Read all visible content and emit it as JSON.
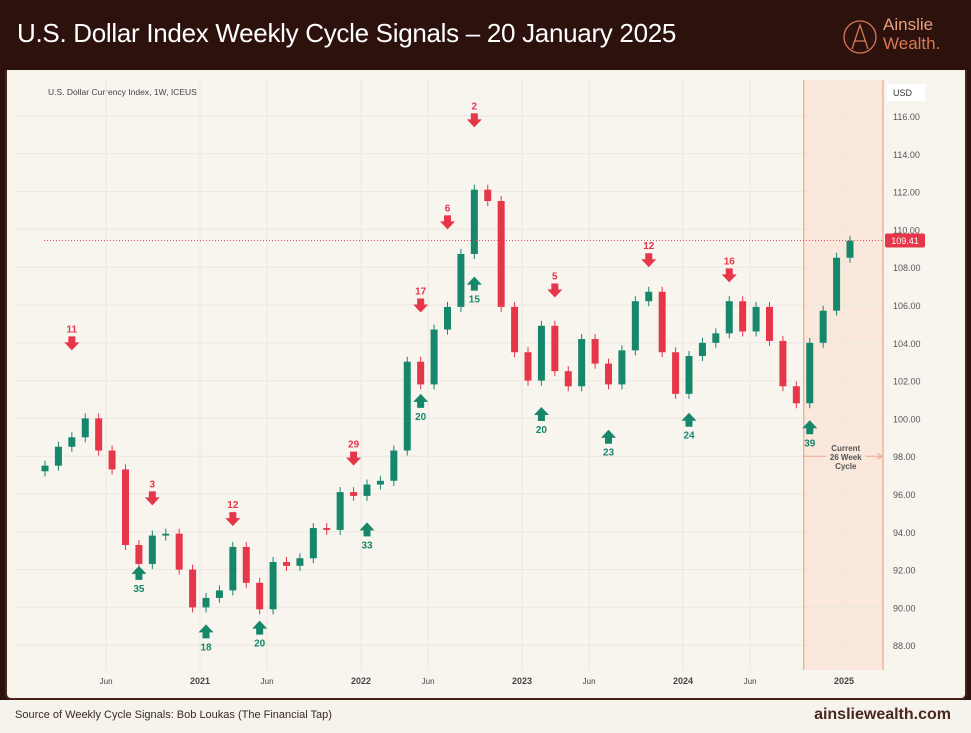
{
  "header": {
    "title": "U.S. Dollar Index Weekly Cycle Signals – 20 January 2025",
    "logo_line1": "Ainslie",
    "logo_line2": "Wealth."
  },
  "footer": {
    "source": "Source of Weekly Cycle Signals: Bob Loukas (The Financial Tap)",
    "site": "ainsliewealth.com"
  },
  "colors": {
    "up": "#16876b",
    "down": "#e5364a",
    "shade": "#f9dccb",
    "cycle_line": "#eea58a",
    "price_tag": "#e5364a"
  },
  "chart_data": {
    "type": "candlestick",
    "title": "U.S. Dollar Currency Index, 1W, ICEUS",
    "currency_label": "USD",
    "ylim": [
      87,
      117
    ],
    "yticks": [
      "116.00",
      "114.00",
      "112.00",
      "110.00",
      "108.00",
      "106.00",
      "104.00",
      "102.00",
      "100.00",
      "98.00",
      "96.00",
      "94.00",
      "92.00",
      "90.00",
      "88.00"
    ],
    "xticks": [
      {
        "label": "Jun",
        "date": "2020-06",
        "bold": false
      },
      {
        "label": "2021",
        "date": "2021-01",
        "bold": true
      },
      {
        "label": "Jun",
        "date": "2021-06",
        "bold": false
      },
      {
        "label": "2022",
        "date": "2022-01",
        "bold": true
      },
      {
        "label": "Jun",
        "date": "2022-06",
        "bold": false
      },
      {
        "label": "2023",
        "date": "2023-01",
        "bold": true
      },
      {
        "label": "Jun",
        "date": "2023-06",
        "bold": false
      },
      {
        "label": "2024",
        "date": "2024-01",
        "bold": true
      },
      {
        "label": "Jun",
        "date": "2024-06",
        "bold": false
      },
      {
        "label": "2025",
        "date": "2025-01",
        "bold": true
      }
    ],
    "last_price": "109.41",
    "closes": [
      [
        "2020-01",
        97.5
      ],
      [
        "2020-02",
        98.5
      ],
      [
        "2020-03",
        99.0
      ],
      [
        "2020-04",
        100.0
      ],
      [
        "2020-05",
        98.3
      ],
      [
        "2020-06",
        97.3
      ],
      [
        "2020-07",
        93.3
      ],
      [
        "2020-08",
        92.3
      ],
      [
        "2020-09",
        93.8
      ],
      [
        "2020-10",
        93.9
      ],
      [
        "2020-11",
        92.0
      ],
      [
        "2020-12",
        90.0
      ],
      [
        "2021-01",
        90.5
      ],
      [
        "2021-02",
        90.9
      ],
      [
        "2021-03",
        93.2
      ],
      [
        "2021-04",
        91.3
      ],
      [
        "2021-05",
        89.9
      ],
      [
        "2021-06",
        92.4
      ],
      [
        "2021-07",
        92.2
      ],
      [
        "2021-08",
        92.6
      ],
      [
        "2021-09",
        94.2
      ],
      [
        "2021-10",
        94.1
      ],
      [
        "2021-11",
        96.1
      ],
      [
        "2021-12",
        95.9
      ],
      [
        "2022-01",
        96.5
      ],
      [
        "2022-02",
        96.7
      ],
      [
        "2022-03",
        98.3
      ],
      [
        "2022-04",
        103.0
      ],
      [
        "2022-05",
        101.8
      ],
      [
        "2022-06",
        104.7
      ],
      [
        "2022-07",
        105.9
      ],
      [
        "2022-08",
        108.7
      ],
      [
        "2022-09",
        112.1
      ],
      [
        "2022-10",
        111.5
      ],
      [
        "2022-11",
        105.9
      ],
      [
        "2022-12",
        103.5
      ],
      [
        "2023-01",
        102.0
      ],
      [
        "2023-02",
        104.9
      ],
      [
        "2023-03",
        102.5
      ],
      [
        "2023-04",
        101.7
      ],
      [
        "2023-05",
        104.2
      ],
      [
        "2023-06",
        102.9
      ],
      [
        "2023-07",
        101.8
      ],
      [
        "2023-08",
        103.6
      ],
      [
        "2023-09",
        106.2
      ],
      [
        "2023-10",
        106.7
      ],
      [
        "2023-11",
        103.5
      ],
      [
        "2023-12",
        101.3
      ],
      [
        "2024-01",
        103.3
      ],
      [
        "2024-02",
        104.0
      ],
      [
        "2024-03",
        104.5
      ],
      [
        "2024-04",
        106.2
      ],
      [
        "2024-05",
        104.6
      ],
      [
        "2024-06",
        105.9
      ],
      [
        "2024-07",
        104.1
      ],
      [
        "2024-08",
        101.7
      ],
      [
        "2024-09",
        100.8
      ],
      [
        "2024-10",
        104.0
      ],
      [
        "2024-11",
        105.7
      ],
      [
        "2024-12",
        108.5
      ],
      [
        "2025-01",
        109.4
      ]
    ],
    "signals": [
      {
        "type": "top",
        "label": "11",
        "date": "2020-03",
        "price": 103.6
      },
      {
        "type": "top",
        "label": "3",
        "date": "2020-09",
        "price": 95.4
      },
      {
        "type": "top",
        "label": "12",
        "date": "2021-03",
        "price": 94.3
      },
      {
        "type": "top",
        "label": "29",
        "date": "2021-12",
        "price": 97.5
      },
      {
        "type": "top",
        "label": "17",
        "date": "2022-05",
        "price": 105.6
      },
      {
        "type": "top",
        "label": "6",
        "date": "2022-07",
        "price": 110.0
      },
      {
        "type": "top",
        "label": "2",
        "date": "2022-09",
        "price": 115.4
      },
      {
        "type": "top",
        "label": "5",
        "date": "2023-03",
        "price": 106.4
      },
      {
        "type": "top",
        "label": "12",
        "date": "2023-10",
        "price": 108.0
      },
      {
        "type": "top",
        "label": "16",
        "date": "2024-04",
        "price": 107.2
      },
      {
        "type": "bottom",
        "label": "35",
        "date": "2020-08",
        "price": 92.2
      },
      {
        "type": "bottom",
        "label": "18",
        "date": "2021-01",
        "price": 89.1
      },
      {
        "type": "bottom",
        "label": "20",
        "date": "2021-05",
        "price": 89.3
      },
      {
        "type": "bottom",
        "label": "33",
        "date": "2022-01",
        "price": 94.5
      },
      {
        "type": "bottom",
        "label": "20",
        "date": "2022-05",
        "price": 101.3
      },
      {
        "type": "bottom",
        "label": "15",
        "date": "2022-09",
        "price": 107.5
      },
      {
        "type": "bottom",
        "label": "20",
        "date": "2023-02",
        "price": 100.6
      },
      {
        "type": "bottom",
        "label": "23",
        "date": "2023-07",
        "price": 99.4
      },
      {
        "type": "bottom",
        "label": "24",
        "date": "2024-01",
        "price": 100.3
      },
      {
        "type": "bottom",
        "label": "39",
        "date": "2024-10",
        "price": 99.9
      }
    ],
    "current_cycle": {
      "start": "2024-10",
      "label_lines": [
        "Current",
        "26 Week",
        "Cycle"
      ],
      "points_to": 98.0
    }
  }
}
